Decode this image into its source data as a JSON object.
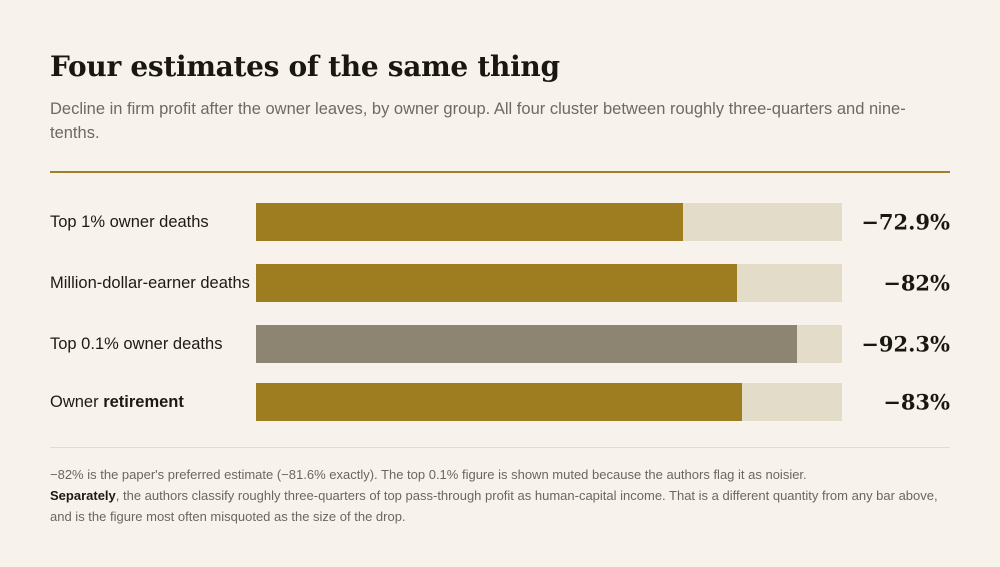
{
  "title": "Four estimates of the same thing",
  "subtitle": "Decline in firm profit after the owner leaves, by owner group. All four cluster between roughly three-quarters and nine-tenths.",
  "colors": {
    "accent": "#9e7c20",
    "muted": "#8d8472",
    "track": "#e3dcc9",
    "background": "#f7f3ec"
  },
  "chart_data": {
    "type": "bar",
    "orientation": "horizontal",
    "categories": [
      "Top 1% owner deaths",
      "Million-dollar-earner deaths",
      "Top 0.1% owner deaths",
      "Owner retirement"
    ],
    "values": [
      -72.9,
      -82,
      -92.3,
      -83
    ],
    "value_labels": [
      "−72.9%",
      "−82%",
      "−92.3%",
      "−83%"
    ],
    "muted": [
      false,
      false,
      true,
      false
    ],
    "unit": "%",
    "xlim": [
      0,
      100
    ],
    "grid": false
  },
  "rows": [
    {
      "label_prefix": "Top 1% owner deaths",
      "label_bold": ""
    },
    {
      "label_prefix": "Million-dollar-earner deaths",
      "label_bold": ""
    },
    {
      "label_prefix": "Top 0.1% owner deaths",
      "label_bold": ""
    },
    {
      "label_prefix": "Owner ",
      "label_bold": "retirement"
    }
  ],
  "footnote": {
    "line1": "−82% is the paper's preferred estimate (−81.6% exactly). The top 0.1% figure is shown muted because the authors flag it as noisier.",
    "bold": "Separately",
    "rest": ", the authors classify roughly three-quarters of top pass-through profit as human-capital income. That is a different quantity from any bar above, and is the figure most often misquoted as the size of the drop."
  }
}
